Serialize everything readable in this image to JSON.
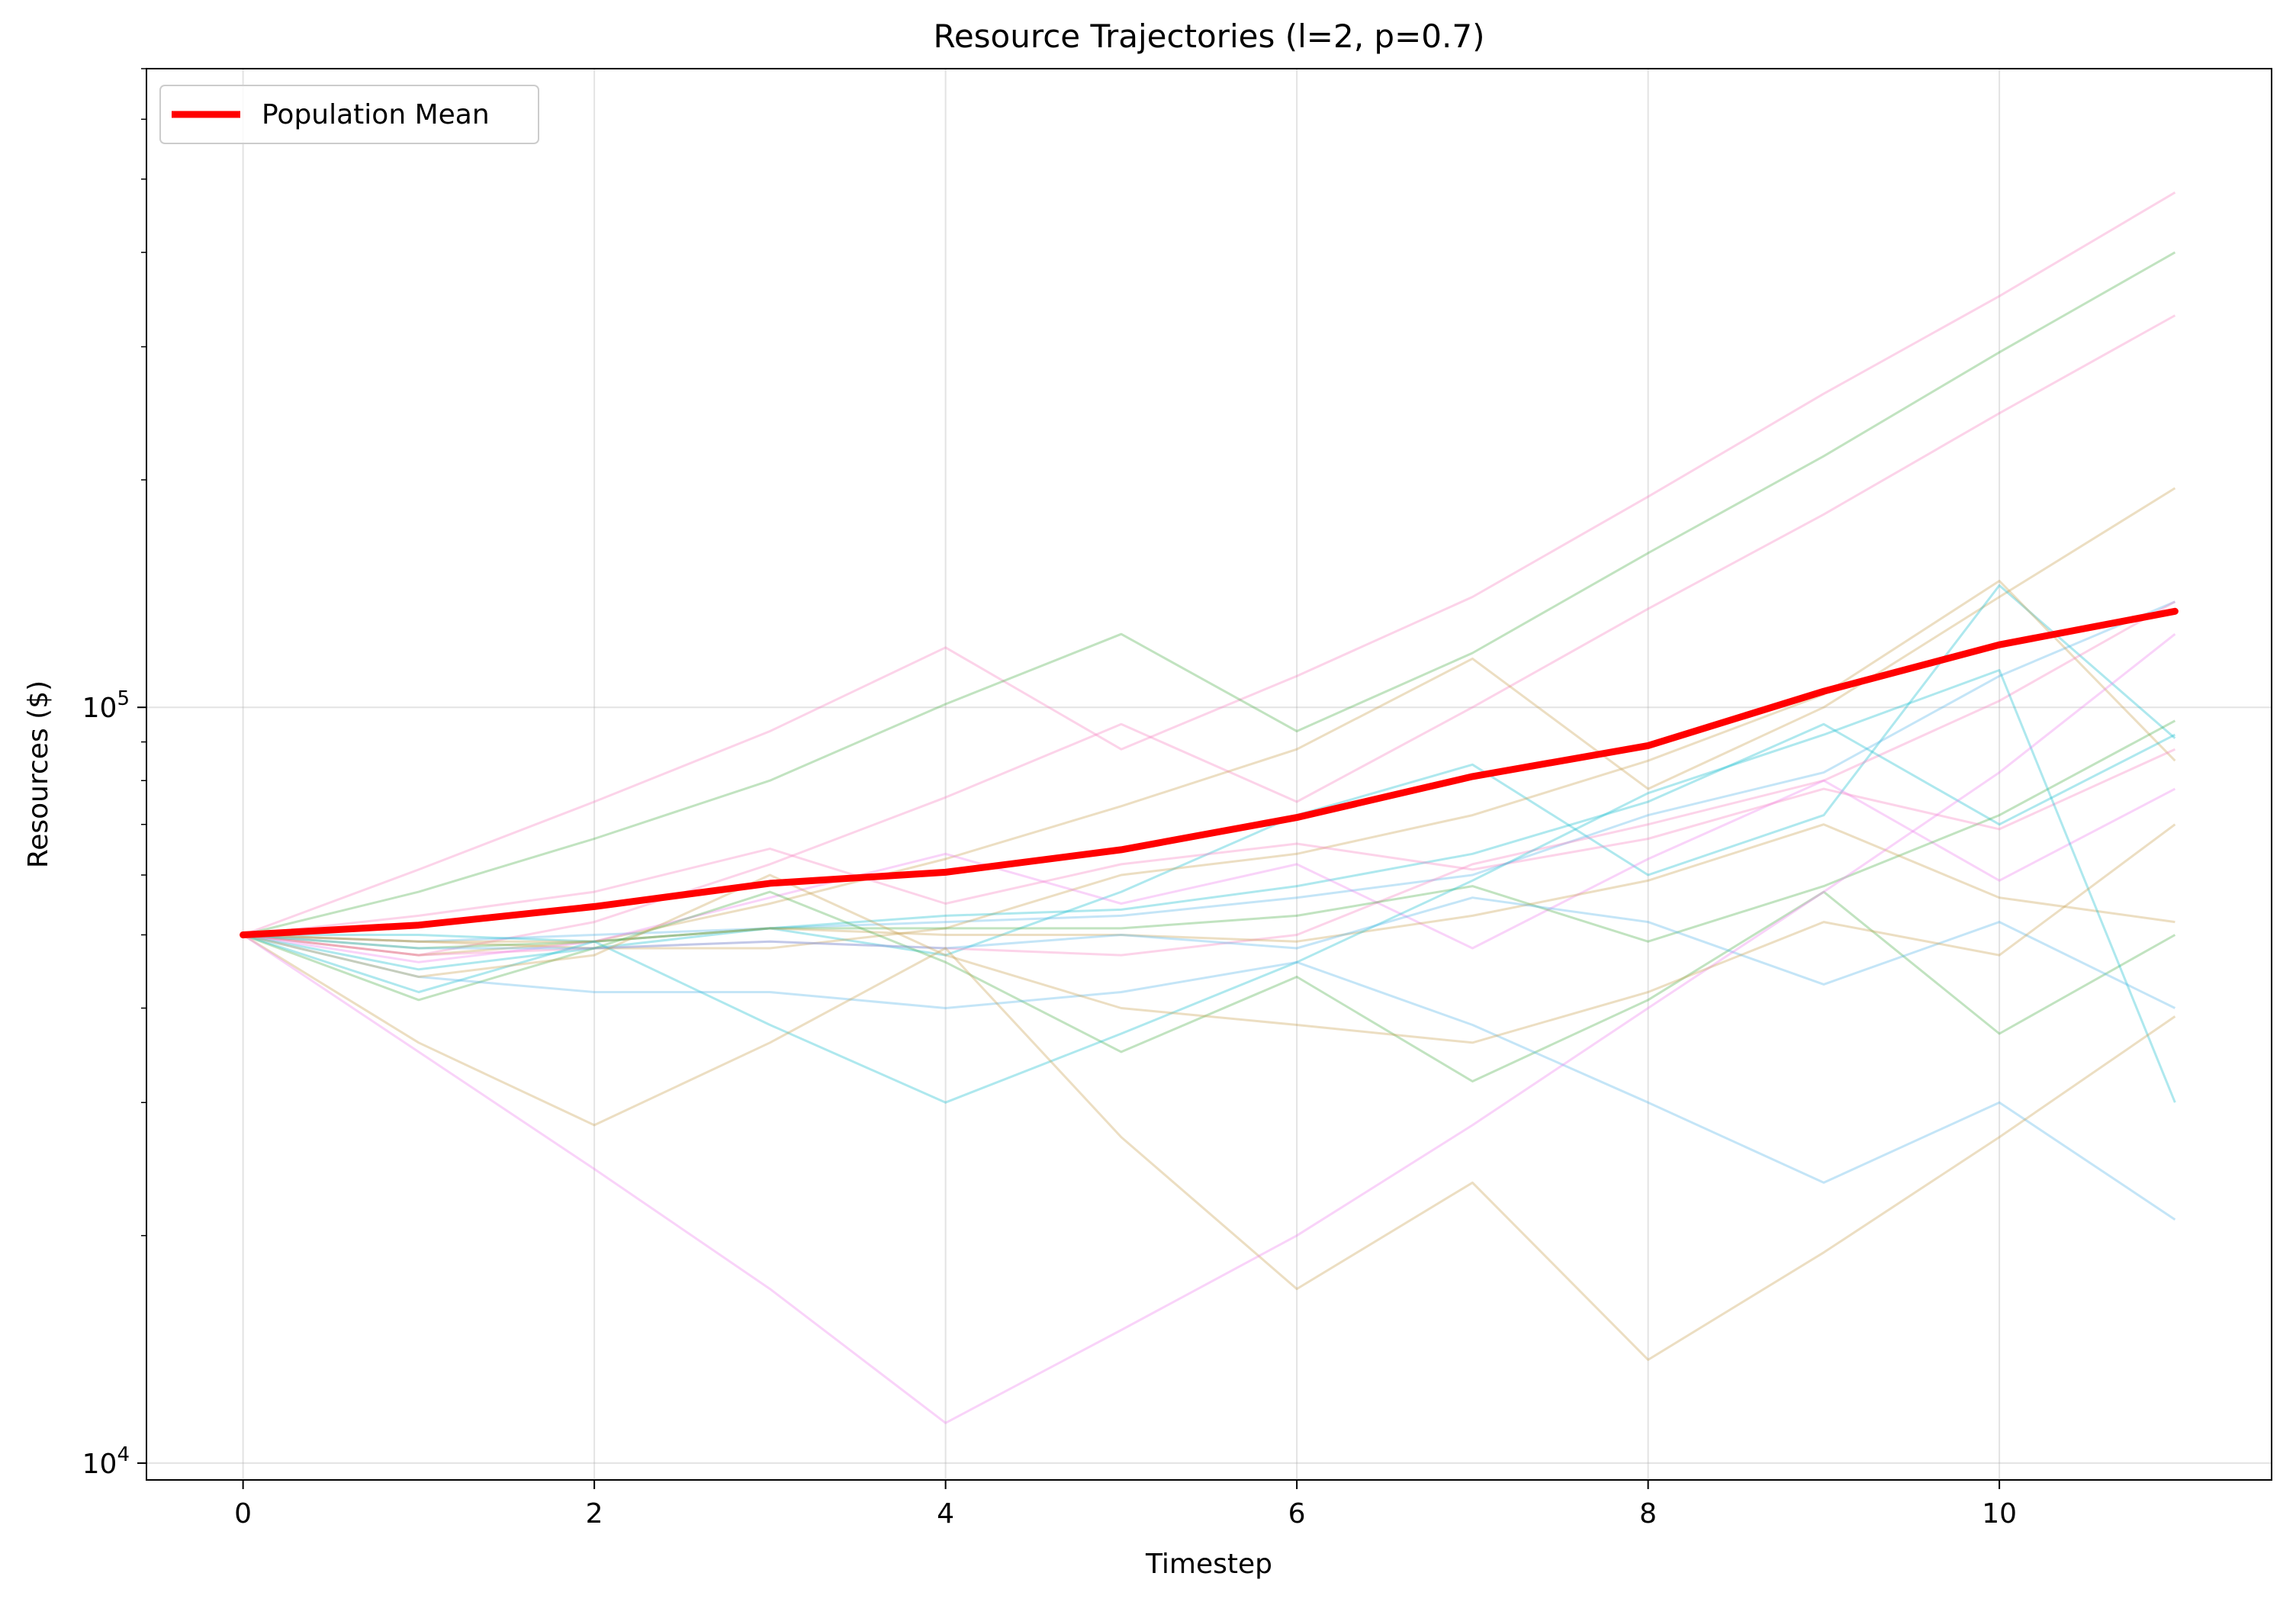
{
  "chart_data": {
    "type": "line",
    "title": "Resource Trajectories (l=2, p=0.7)",
    "xlabel": "Timestep",
    "ylabel": "Resources ($)",
    "x": [
      0,
      1,
      2,
      3,
      4,
      5,
      6,
      7,
      8,
      9,
      10,
      11
    ],
    "xlim": [
      -0.55,
      11.55
    ],
    "ylim": [
      9500,
      700000
    ],
    "yscale": "log",
    "x_ticks": [
      0,
      2,
      4,
      6,
      8,
      10
    ],
    "x_tick_labels": [
      "0",
      "2",
      "4",
      "6",
      "8",
      "10"
    ],
    "y_ticks": [
      10000,
      100000
    ],
    "y_tick_labels": [
      {
        "base": "10",
        "exp": "4"
      },
      {
        "base": "10",
        "exp": "5"
      }
    ],
    "grid": true,
    "legend": {
      "position": "top-left",
      "entries": [
        "Population Mean"
      ]
    },
    "mean_series": {
      "name": "Population Mean",
      "color": "#ff0000",
      "values": [
        50000,
        51500,
        54500,
        58500,
        60500,
        64800,
        71500,
        81000,
        89000,
        105000,
        121000,
        134000
      ]
    },
    "trajectories": [
      {
        "color": "#f781bf",
        "values": [
          50000,
          61000,
          75000,
          93000,
          120000,
          88000,
          110000,
          140000,
          190000,
          260000,
          350000,
          480000
        ]
      },
      {
        "color": "#4daf4a",
        "values": [
          50000,
          57000,
          67000,
          80000,
          101000,
          125000,
          93000,
          118000,
          160000,
          215000,
          295000,
          400000
        ]
      },
      {
        "color": "#f781bf",
        "values": [
          50000,
          47000,
          52000,
          62000,
          76000,
          95000,
          75000,
          100000,
          135000,
          180000,
          245000,
          330000
        ]
      },
      {
        "color": "#c8a050",
        "values": [
          50000,
          47000,
          49000,
          55000,
          63000,
          74000,
          88000,
          116000,
          78000,
          100000,
          140000,
          195000
        ]
      },
      {
        "color": "#17becf",
        "values": [
          50000,
          45000,
          48000,
          51000,
          47000,
          57000,
          72000,
          84000,
          60000,
          72000,
          145000,
          91000
        ]
      },
      {
        "color": "#56b4e9",
        "values": [
          50000,
          49000,
          50000,
          51000,
          52000,
          53000,
          56000,
          60000,
          72000,
          82000,
          110000,
          138000
        ]
      },
      {
        "color": "#c8a050",
        "values": [
          50000,
          49000,
          48000,
          48000,
          51000,
          60000,
          64000,
          72000,
          85000,
          104000,
          147000,
          85000
        ]
      },
      {
        "color": "#f781bf",
        "values": [
          50000,
          47000,
          48000,
          49000,
          48000,
          47000,
          50000,
          62000,
          70000,
          80000,
          102000,
          138000
        ]
      },
      {
        "color": "#17becf",
        "values": [
          50000,
          50000,
          49000,
          51000,
          53000,
          54000,
          58000,
          64000,
          75000,
          95000,
          70000,
          92000
        ]
      },
      {
        "color": "#ee82ee",
        "values": [
          50000,
          46000,
          49000,
          56000,
          64000,
          55000,
          62000,
          48000,
          63000,
          80000,
          59000,
          78000
        ]
      },
      {
        "color": "#4daf4a",
        "values": [
          50000,
          48000,
          49000,
          51000,
          51000,
          51000,
          53000,
          58000,
          49000,
          58000,
          72000,
          96000
        ]
      },
      {
        "color": "#c8a050",
        "values": [
          50000,
          49000,
          49000,
          51000,
          50000,
          50000,
          49000,
          53000,
          59000,
          70000,
          56000,
          52000
        ]
      },
      {
        "color": "#f781bf",
        "values": [
          50000,
          53000,
          57000,
          65000,
          55000,
          62000,
          66000,
          61000,
          67000,
          78000,
          69000,
          88000
        ]
      },
      {
        "color": "#4daf4a",
        "values": [
          50000,
          41000,
          48000,
          57000,
          46000,
          35000,
          44000,
          32000,
          41000,
          57000,
          37000,
          50000
        ]
      },
      {
        "color": "#17becf",
        "values": [
          50000,
          42000,
          49000,
          38000,
          30000,
          37000,
          46000,
          59000,
          77000,
          92000,
          112000,
          30000
        ]
      },
      {
        "color": "#56b4e9",
        "values": [
          50000,
          44000,
          42000,
          42000,
          40000,
          42000,
          46000,
          38000,
          30000,
          23500,
          30000,
          21000
        ]
      },
      {
        "color": "#56b4e9",
        "values": [
          50000,
          48000,
          48000,
          49000,
          48000,
          50000,
          48000,
          56000,
          52000,
          43000,
          52000,
          40000
        ]
      },
      {
        "color": "#c8a050",
        "values": [
          50000,
          36000,
          28000,
          36000,
          48000,
          27000,
          17000,
          23500,
          13700,
          19000,
          27000,
          39000
        ]
      },
      {
        "color": "#ee82ee",
        "values": [
          50000,
          35000,
          24500,
          17000,
          11300,
          15000,
          20000,
          28000,
          40000,
          57000,
          82000,
          125000
        ]
      },
      {
        "color": "#c8a050",
        "values": [
          50000,
          44000,
          47000,
          60000,
          47000,
          40000,
          38000,
          36000,
          42000,
          52000,
          47000,
          70000
        ]
      }
    ]
  }
}
